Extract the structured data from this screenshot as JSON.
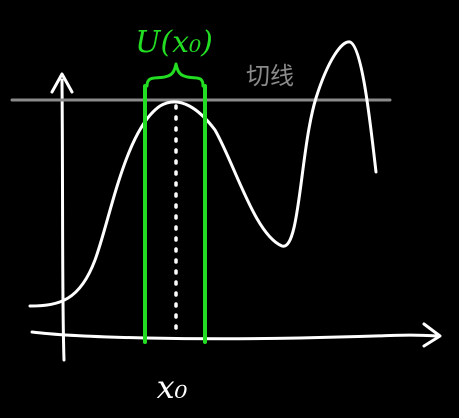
{
  "colors": {
    "background": "#000000",
    "curve": "#ffffff",
    "tangent": "#8a8a8a",
    "neighborhood": "#22dd22"
  },
  "labels": {
    "neighborhood": "U(x₀)",
    "tangent": "切线",
    "point": "x₀"
  }
}
